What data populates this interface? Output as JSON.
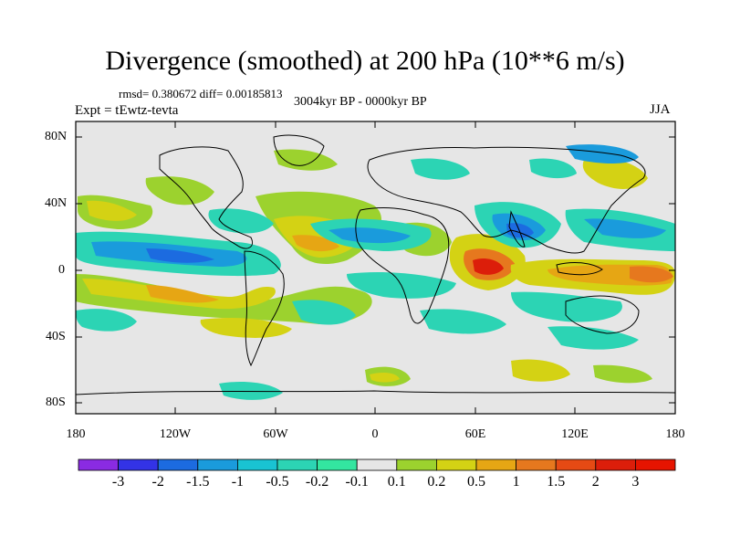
{
  "title": "Divergence (smoothed) at 200 hPa (10**6 m/s)",
  "stats": "rmsd= 0.380672 diff= 0.00185813",
  "period": "3004kyr BP - 0000kyr BP",
  "experiment": "Expt = tEwtz-tevta",
  "season": "JJA",
  "y_labels": [
    "80N",
    "40N",
    "0",
    "40S",
    "80S"
  ],
  "x_labels": [
    "180",
    "120W",
    "60W",
    "0",
    "60E",
    "120E",
    "180"
  ],
  "colorbar": {
    "labels": [
      "-3",
      "-2",
      "-1.5",
      "-1",
      "-0.5",
      "-0.2",
      "-0.1",
      "0.1",
      "0.2",
      "0.5",
      "1",
      "1.5",
      "2",
      "3"
    ],
    "colors": [
      "#8a2be2",
      "#3333e6",
      "#1c6be0",
      "#1a9bdc",
      "#19c3d2",
      "#2cd4b4",
      "#33e6a0",
      "#e6e6e6",
      "#9cd22e",
      "#d4d214",
      "#e6a614",
      "#e6781e",
      "#e64a14",
      "#dc1e0a",
      "#e61400"
    ]
  }
}
